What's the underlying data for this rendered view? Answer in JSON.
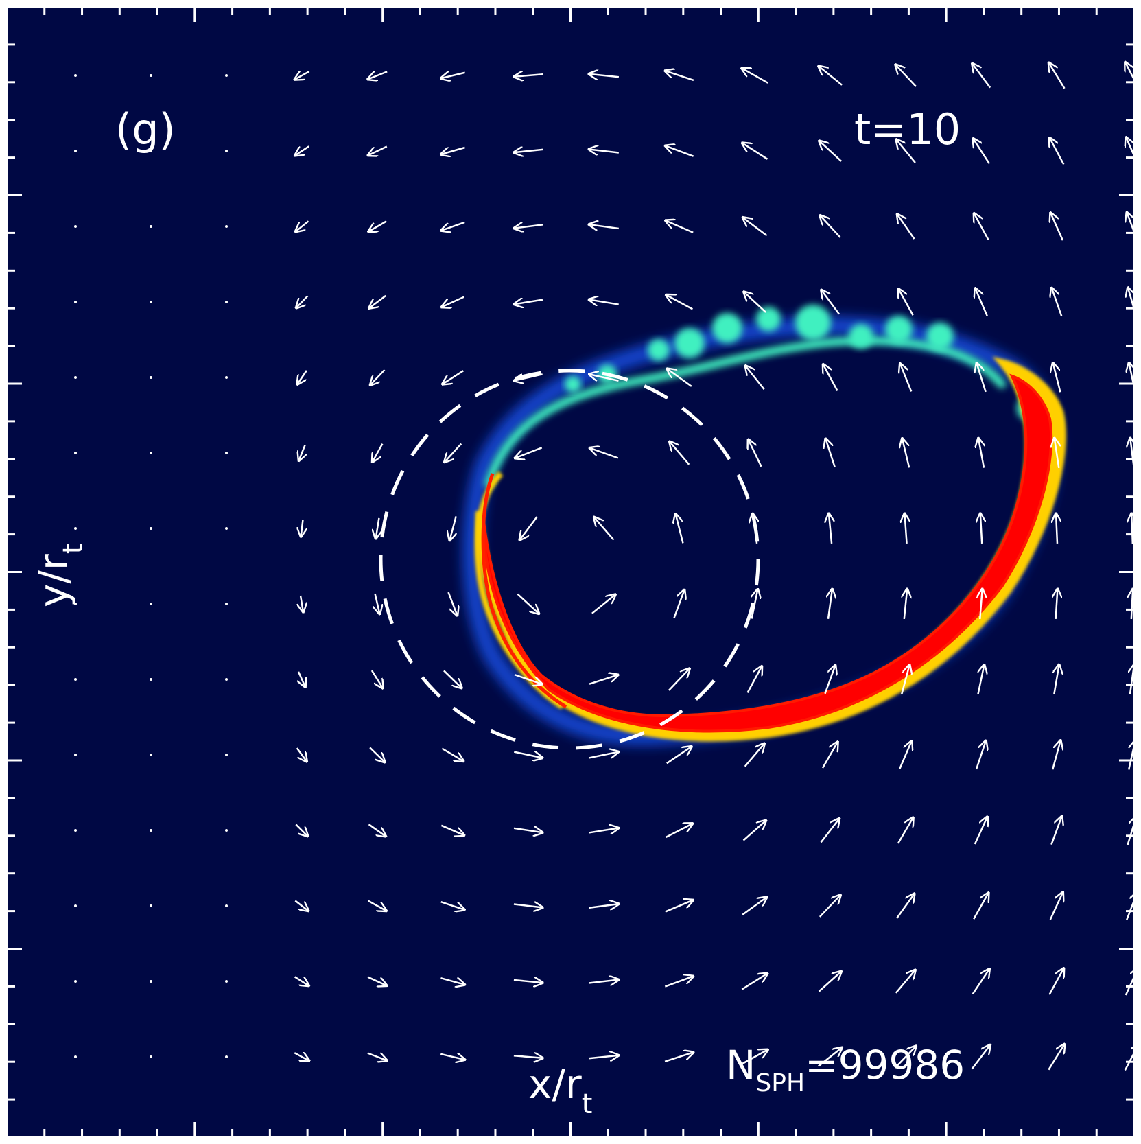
{
  "panel_label": "(g)",
  "time_label": "t=10",
  "xlabel": {
    "main": "x/r",
    "sub": "t"
  },
  "ylabel": {
    "main": "y/r",
    "sub": "t"
  },
  "nsph_label": {
    "main": "N",
    "sub": "SPH",
    "value": "=99986"
  },
  "colors": {
    "background": "#000844",
    "frame": "#ffffff",
    "arrows": "#ffffff",
    "density_low": "#1a5cff",
    "density_mid": "#40f0c0",
    "density_high": "#ff0000"
  },
  "chart_data": {
    "type": "vector_field_density_map",
    "grid": {
      "columns": 15,
      "rows": 14
    },
    "density_colormap": [
      "dark blue",
      "blue",
      "cyan",
      "yellow",
      "red"
    ],
    "overlay": "dashed circle",
    "axis_ticks_labeled": false
  }
}
